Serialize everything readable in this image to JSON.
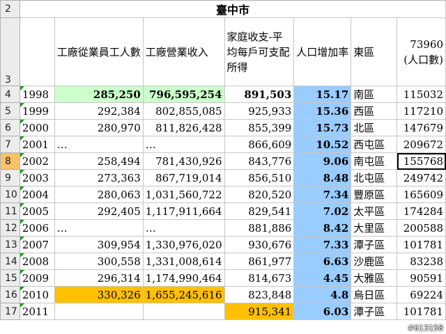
{
  "sheet": {
    "city_title": "臺中市",
    "headers": {
      "workers": "工廠從業員工人數",
      "revenue": "工廠營業收入",
      "income": "家庭收支-平均每戶可支配所得",
      "growth": "人口增加率",
      "district": "東區",
      "population_line1": "73960",
      "population_line2": "(人口數)"
    },
    "row_headers": [
      "2",
      "3",
      "4",
      "5",
      "6",
      "7",
      "8",
      "9",
      "10",
      "11",
      "12",
      "13",
      "14",
      "15",
      "16",
      "17"
    ],
    "rows": [
      {
        "year": "1998",
        "workers": "285,250",
        "revenue": "796,595,254",
        "income": "891,503",
        "growth": "15.17",
        "district": "南區",
        "population": "115032"
      },
      {
        "year": "1999",
        "workers": "292,384",
        "revenue": "802,855,085",
        "income": "925,933",
        "growth": "15.36",
        "district": "西區",
        "population": "117210"
      },
      {
        "year": "2000",
        "workers": "280,970",
        "revenue": "811,826,428",
        "income": "855,399",
        "growth": "15.73",
        "district": "北區",
        "population": "147679"
      },
      {
        "year": "2001",
        "workers": "…",
        "revenue": "…",
        "income": "866,609",
        "growth": "10.52",
        "district": "西屯區",
        "population": "209672"
      },
      {
        "year": "2002",
        "workers": "258,494",
        "revenue": "781,430,926",
        "income": "843,776",
        "growth": "9.06",
        "district": "南屯區",
        "population": "155768"
      },
      {
        "year": "2003",
        "workers": "273,363",
        "revenue": "867,719,014",
        "income": "856,510",
        "growth": "8.48",
        "district": "北屯區",
        "population": "249742"
      },
      {
        "year": "2004",
        "workers": "280,063",
        "revenue": "1,031,560,722",
        "income": "820,520",
        "growth": "7.34",
        "district": "豐原區",
        "population": "165609"
      },
      {
        "year": "2005",
        "workers": "292,405",
        "revenue": "1,117,911,664",
        "income": "829,541",
        "growth": "7.02",
        "district": "太平區",
        "population": "174284"
      },
      {
        "year": "2006",
        "workers": "…",
        "revenue": "…",
        "income": "881,886",
        "growth": "8.42",
        "district": "大里區",
        "population": "200588"
      },
      {
        "year": "2007",
        "workers": "309,954",
        "revenue": "1,330,976,020",
        "income": "930,676",
        "growth": "7.33",
        "district": "潭子區",
        "population": "101781"
      },
      {
        "year": "2008",
        "workers": "300,558",
        "revenue": "1,331,008,614",
        "income": "861,977",
        "growth": "6.63",
        "district": "沙鹿區",
        "population": "83238"
      },
      {
        "year": "2009",
        "workers": "296,314",
        "revenue": "1,174,990,464",
        "income": "814,673",
        "growth": "4.45",
        "district": "大雅區",
        "population": "90591"
      },
      {
        "year": "2010",
        "workers": "330,326",
        "revenue": "1,655,245,616",
        "income": "823,848",
        "growth": "4.8",
        "district": "烏日區",
        "population": "69224"
      },
      {
        "year": "2011",
        "workers": "",
        "revenue": "",
        "income": "915,341",
        "growth": "6.03",
        "district": "潭子區",
        "population": "101781"
      }
    ],
    "selected_row": "8"
  },
  "watermark": "#613158",
  "colors": {
    "highlight_green": "#ccffcc",
    "highlight_blue": "#99ccff",
    "highlight_orange": "#ffc000",
    "selected_header": "#f9c36a"
  }
}
